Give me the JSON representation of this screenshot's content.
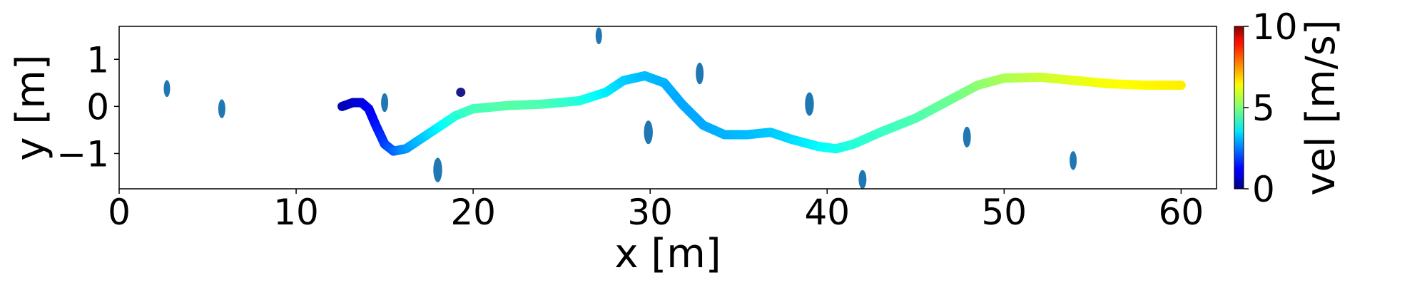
{
  "chart_data": {
    "type": "scatter",
    "xlabel": "x [m]",
    "ylabel": "y [m]",
    "xlim": [
      0,
      62
    ],
    "ylim": [
      -1.75,
      1.7
    ],
    "xticks": [
      0,
      10,
      20,
      30,
      40,
      50,
      60
    ],
    "xtick_labels": [
      "0",
      "10",
      "20",
      "30",
      "40",
      "50",
      "60"
    ],
    "yticks": [
      1,
      0,
      -1
    ],
    "ytick_labels": [
      "1",
      "0",
      "−1"
    ],
    "grid": false,
    "obstacle_color": "#1f77b4",
    "goal_marker_color": "#1a1a8a",
    "obstacles": [
      {
        "x": 2.7,
        "y": 0.38,
        "rx": 0.18,
        "ry": 0.18
      },
      {
        "x": 5.8,
        "y": -0.05,
        "rx": 0.2,
        "ry": 0.2
      },
      {
        "x": 15.0,
        "y": 0.08,
        "rx": 0.2,
        "ry": 0.2
      },
      {
        "x": 18.0,
        "y": -1.35,
        "rx": 0.25,
        "ry": 0.26
      },
      {
        "x": 27.1,
        "y": 1.5,
        "rx": 0.18,
        "ry": 0.18
      },
      {
        "x": 29.9,
        "y": -0.55,
        "rx": 0.25,
        "ry": 0.25
      },
      {
        "x": 32.8,
        "y": 0.7,
        "rx": 0.22,
        "ry": 0.23
      },
      {
        "x": 39.0,
        "y": 0.05,
        "rx": 0.25,
        "ry": 0.25
      },
      {
        "x": 42.0,
        "y": -1.55,
        "rx": 0.22,
        "ry": 0.2
      },
      {
        "x": 47.9,
        "y": -0.65,
        "rx": 0.22,
        "ry": 0.22
      },
      {
        "x": 53.9,
        "y": -1.15,
        "rx": 0.2,
        "ry": 0.2
      }
    ],
    "marker": {
      "x": 19.3,
      "y": 0.3
    },
    "trajectory": [
      {
        "x": 12.6,
        "y": 0.0,
        "v": 0.5
      },
      {
        "x": 13.2,
        "y": 0.08,
        "v": 0.7
      },
      {
        "x": 13.7,
        "y": 0.08,
        "v": 0.9
      },
      {
        "x": 14.1,
        "y": -0.05,
        "v": 1.1
      },
      {
        "x": 14.5,
        "y": -0.4,
        "v": 1.4
      },
      {
        "x": 15.0,
        "y": -0.8,
        "v": 1.8
      },
      {
        "x": 15.5,
        "y": -0.95,
        "v": 2.2
      },
      {
        "x": 16.2,
        "y": -0.9,
        "v": 2.7
      },
      {
        "x": 17.0,
        "y": -0.7,
        "v": 3.1
      },
      {
        "x": 18.0,
        "y": -0.45,
        "v": 3.6
      },
      {
        "x": 19.0,
        "y": -0.2,
        "v": 4.1
      },
      {
        "x": 20.0,
        "y": -0.05,
        "v": 4.4
      },
      {
        "x": 22.0,
        "y": 0.02,
        "v": 4.6
      },
      {
        "x": 24.0,
        "y": 0.05,
        "v": 4.5
      },
      {
        "x": 26.0,
        "y": 0.12,
        "v": 4.1
      },
      {
        "x": 27.5,
        "y": 0.3,
        "v": 3.6
      },
      {
        "x": 28.5,
        "y": 0.55,
        "v": 3.3
      },
      {
        "x": 29.7,
        "y": 0.65,
        "v": 3.1
      },
      {
        "x": 30.8,
        "y": 0.5,
        "v": 3.0
      },
      {
        "x": 31.8,
        "y": 0.05,
        "v": 2.9
      },
      {
        "x": 33.0,
        "y": -0.4,
        "v": 2.9
      },
      {
        "x": 34.2,
        "y": -0.6,
        "v": 3.0
      },
      {
        "x": 35.5,
        "y": -0.6,
        "v": 3.1
      },
      {
        "x": 36.8,
        "y": -0.55,
        "v": 3.2
      },
      {
        "x": 38.0,
        "y": -0.7,
        "v": 3.4
      },
      {
        "x": 39.5,
        "y": -0.85,
        "v": 3.7
      },
      {
        "x": 40.5,
        "y": -0.9,
        "v": 3.9
      },
      {
        "x": 41.5,
        "y": -0.8,
        "v": 4.1
      },
      {
        "x": 43.0,
        "y": -0.55,
        "v": 4.3
      },
      {
        "x": 45.0,
        "y": -0.25,
        "v": 4.5
      },
      {
        "x": 47.0,
        "y": 0.15,
        "v": 4.8
      },
      {
        "x": 48.5,
        "y": 0.45,
        "v": 5.1
      },
      {
        "x": 50.0,
        "y": 0.6,
        "v": 5.4
      },
      {
        "x": 52.0,
        "y": 0.62,
        "v": 5.7
      },
      {
        "x": 54.0,
        "y": 0.55,
        "v": 6.0
      },
      {
        "x": 56.0,
        "y": 0.48,
        "v": 6.2
      },
      {
        "x": 58.0,
        "y": 0.45,
        "v": 6.3
      },
      {
        "x": 60.0,
        "y": 0.45,
        "v": 6.4
      }
    ],
    "colorbar": {
      "label": "vel [m/s]",
      "min": 0,
      "max": 10,
      "ticks": [
        10,
        5,
        0
      ],
      "tick_labels": [
        "10",
        "5",
        "0"
      ],
      "colormap": "jet"
    }
  }
}
